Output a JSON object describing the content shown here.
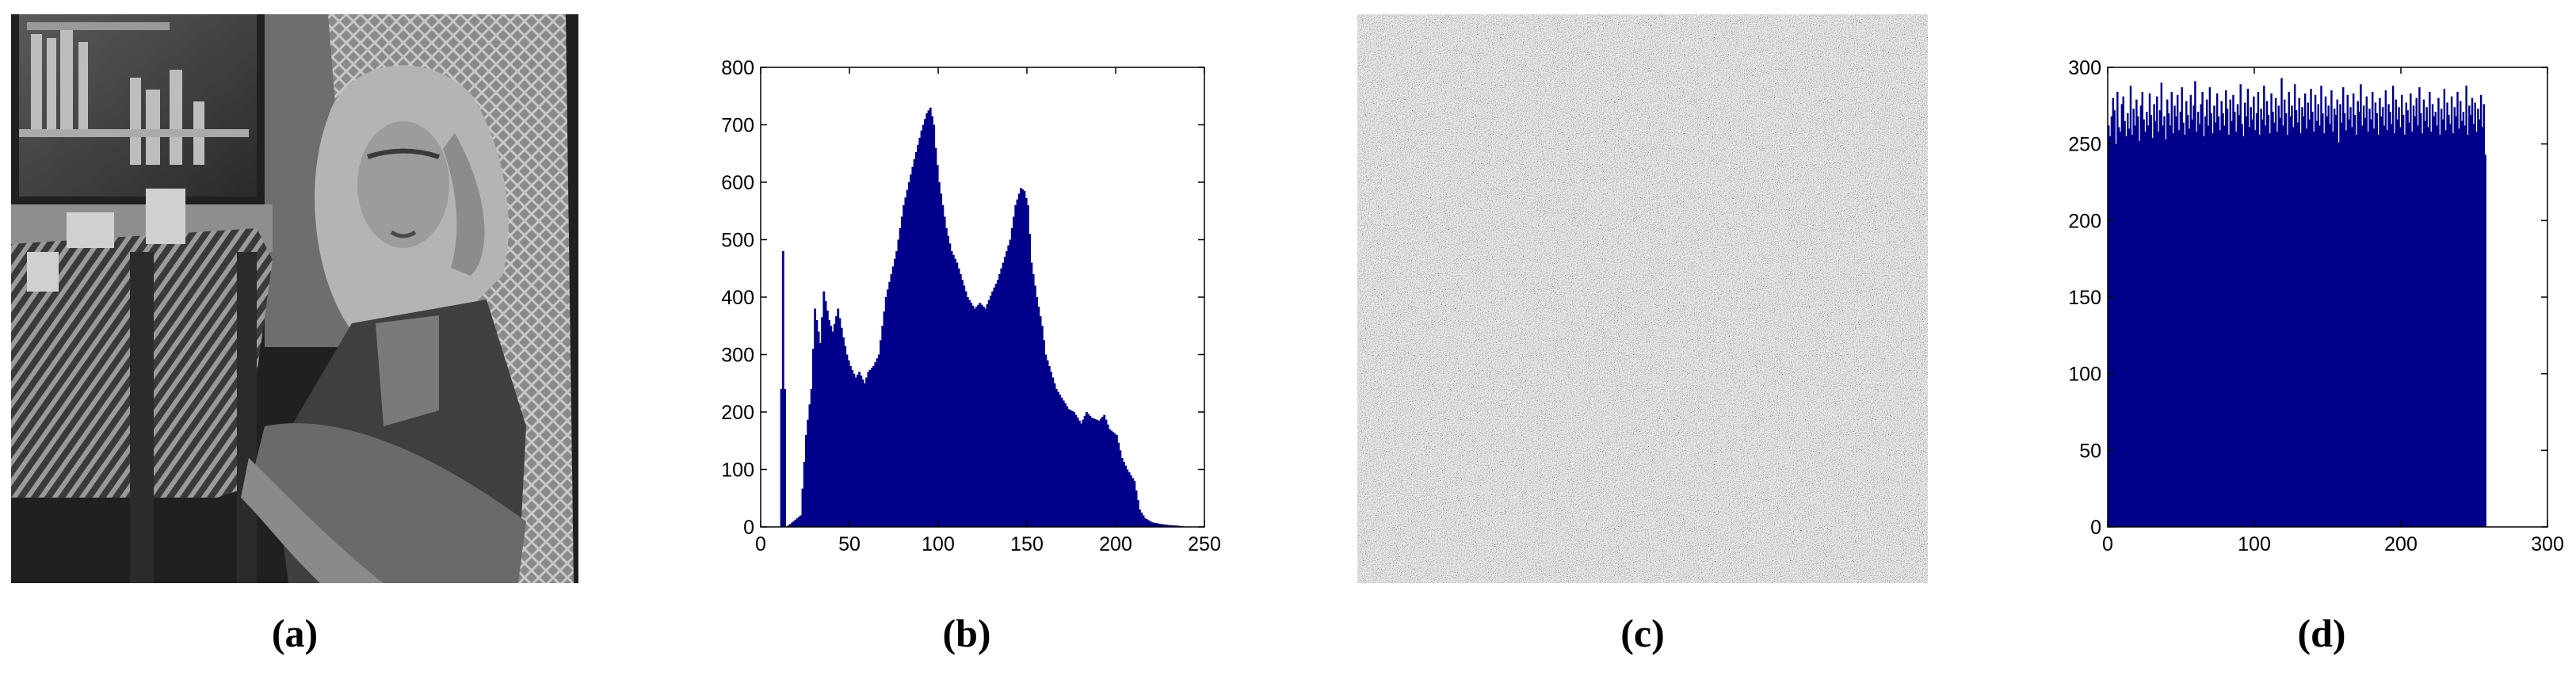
{
  "panels": {
    "a": {
      "caption": "(a)",
      "image": "grayscale-portrait-woman-scarf"
    },
    "b": {
      "caption": "(b)"
    },
    "c": {
      "caption": "(c)",
      "image": "encrypted-noise-image"
    },
    "d": {
      "caption": "(d)"
    }
  },
  "chart_data": [
    {
      "type": "bar",
      "title": "",
      "xlabel": "",
      "ylabel": "",
      "xlim": [
        0,
        250
      ],
      "ylim": [
        0,
        800
      ],
      "xticks": [
        "0",
        "50",
        "100",
        "150",
        "200",
        "250"
      ],
      "yticks": [
        "0",
        "100",
        "200",
        "300",
        "400",
        "500",
        "600",
        "700",
        "800"
      ],
      "color": "#00008B",
      "x": [
        0,
        10,
        12,
        14,
        18,
        22,
        25,
        28,
        30,
        33,
        35,
        38,
        40,
        43,
        46,
        48,
        50,
        53,
        55,
        58,
        60,
        63,
        66,
        70,
        73,
        76,
        80,
        83,
        86,
        90,
        93,
        95,
        97,
        98,
        100,
        102,
        104,
        107,
        110,
        113,
        116,
        120,
        123,
        126,
        130,
        133,
        136,
        140,
        143,
        146,
        148,
        150,
        152,
        155,
        158,
        160,
        163,
        166,
        170,
        173,
        176,
        180,
        183,
        186,
        190,
        193,
        196,
        200,
        203,
        206,
        210,
        213,
        216,
        220,
        225,
        230,
        235,
        240,
        250
      ],
      "values": [
        0,
        0,
        480,
        0,
        10,
        20,
        160,
        240,
        380,
        320,
        410,
        360,
        340,
        380,
        330,
        300,
        280,
        260,
        270,
        250,
        270,
        280,
        300,
        400,
        440,
        480,
        560,
        600,
        640,
        690,
        720,
        730,
        700,
        660,
        600,
        560,
        520,
        480,
        460,
        430,
        400,
        380,
        390,
        380,
        410,
        430,
        460,
        500,
        560,
        590,
        585,
        560,
        460,
        400,
        350,
        300,
        270,
        240,
        220,
        205,
        200,
        180,
        200,
        190,
        185,
        195,
        170,
        160,
        120,
        100,
        80,
        30,
        15,
        8,
        5,
        3,
        2,
        0,
        0
      ],
      "grid": false
    },
    {
      "type": "bar",
      "title": "",
      "xlabel": "",
      "ylabel": "",
      "xlim": [
        0,
        300
      ],
      "ylim": [
        0,
        300
      ],
      "xticks": [
        "0",
        "100",
        "200",
        "300"
      ],
      "yticks": [
        "0",
        "50",
        "100",
        "150",
        "200",
        "250",
        "300"
      ],
      "color": "#00008B",
      "x_range": [
        0,
        255
      ],
      "values": [
        262,
        255,
        268,
        280,
        272,
        250,
        284,
        261,
        258,
        276,
        281,
        265,
        255,
        270,
        260,
        288,
        256,
        273,
        262,
        279,
        268,
        252,
        275,
        284,
        266,
        258,
        271,
        262,
        283,
        269,
        254,
        276,
        265,
        281,
        258,
        272,
        290,
        262,
        268,
        253,
        279,
        270,
        262,
        284,
        257,
        275,
        268,
        282,
        259,
        271,
        287,
        264,
        256,
        278,
        269,
        260,
        282,
        266,
        275,
        291,
        258,
        271,
        263,
        276,
        284,
        255,
        268,
        279,
        262,
        287,
        270,
        257,
        275,
        264,
        283,
        268,
        259,
        278,
        270,
        262,
        285,
        273,
        256,
        279,
        265,
        282,
        271,
        258,
        276,
        269,
        289,
        263,
        255,
        277,
        268,
        286,
        261,
        274,
        266,
        281,
        259,
        270,
        284,
        256,
        273,
        266,
        288,
        262,
        278,
        269,
        257,
        283,
        271,
        264,
        280,
        258,
        275,
        267,
        293,
        262,
        279,
        270,
        256,
        284,
        268,
        275,
        261,
        289,
        272,
        264,
        280,
        257,
        274,
        268,
        283,
        260,
        277,
        266,
        286,
        271,
        258,
        282,
        265,
        276,
        262,
        288,
        270,
        257,
        281,
        268,
        275,
        263,
        285,
        258,
        273,
        269,
        279,
        251,
        276,
        264,
        287,
        270,
        259,
        282,
        266,
        274,
        261,
        283,
        269,
        256,
        278,
        271,
        289,
        262,
        275,
        267,
        281,
        258,
        273,
        266,
        284,
        260,
        277,
        270,
        256,
        280,
        268,
        274,
        262,
        285,
        259,
        276,
        271,
        263,
        288,
        257,
        279,
        266,
        274,
        261,
        282,
        269,
        256,
        277,
        272,
        264,
        283,
        258,
        275,
        268,
        280,
        262,
        287,
        270,
        257,
        279,
        265,
        274,
        261,
        284,
        258,
        276,
        268,
        271,
        262,
        280,
        256,
        273,
        266,
        286,
        259,
        277,
        269,
        263,
        281,
        257,
        274,
        268,
        284,
        260,
        278,
        265,
        271,
        262,
        288,
        256,
        275,
        269,
        280,
        263,
        277,
        258,
        273,
        266,
        282,
        261,
        276,
        243
      ],
      "grid": false
    }
  ]
}
